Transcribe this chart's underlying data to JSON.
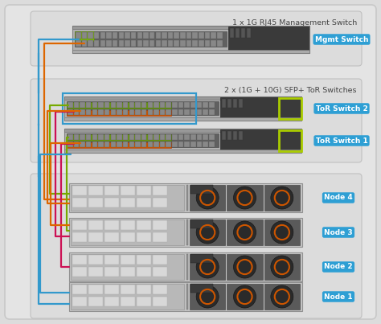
{
  "bg_color": "#dcdcdc",
  "outer_bg": "#dcdcdc",
  "panel_bg": "#e4e4e4",
  "panel_border": "#c0c0c0",
  "label_bg": "#2e9fd4",
  "label_text": "#ffffff",
  "title_text": "#444444",
  "section1_title": "1 x 1G RJ45 Management Switch",
  "section2_title": "2 x (1G + 10G) SFP+ ToR Switches",
  "labels": [
    "Mgmt Switch",
    "ToR Switch 2",
    "ToR Switch 1",
    "Node 4",
    "Node 3",
    "Node 2",
    "Node 1"
  ],
  "cable_blue": "#3399cc",
  "cable_orange": "#dd6600",
  "cable_red": "#cc1155",
  "cable_green": "#77aa00",
  "cable_lw": 1.6,
  "yg_color": "#aacc00",
  "fig_width": 4.74,
  "fig_height": 4.03,
  "dpi": 100
}
